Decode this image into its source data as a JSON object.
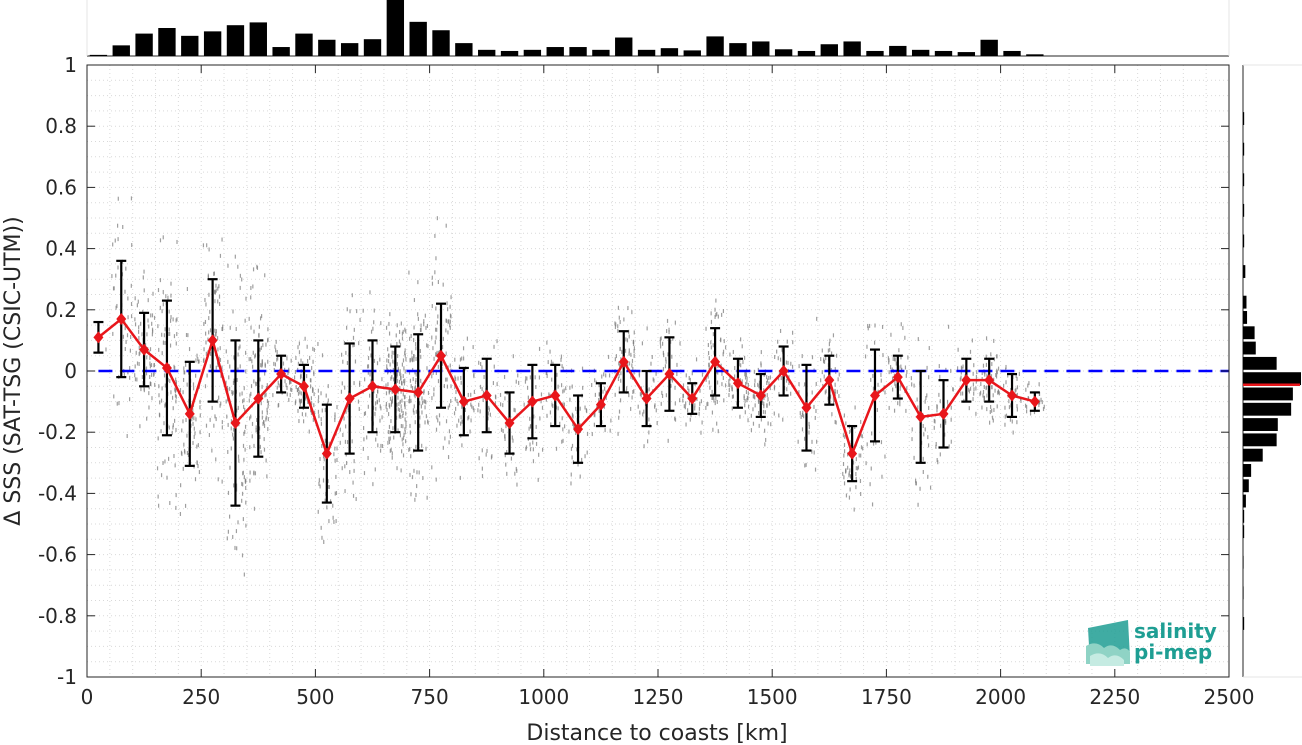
{
  "chart_data": {
    "type": "scatter",
    "xlabel": "Distance to coasts [km]",
    "ylabel": "Δ SSS (SAT-TSG (CSIC-UTM))",
    "xlim": [
      0,
      2500
    ],
    "ylim": [
      -1,
      1
    ],
    "xticks": [
      0,
      250,
      500,
      750,
      1000,
      1250,
      1500,
      1750,
      2000,
      2250,
      2500
    ],
    "xtick_labels": [
      "0",
      "250",
      "500",
      "750",
      "1000",
      "1250",
      "1500",
      "1750",
      "2000",
      "2250",
      "2500"
    ],
    "yticks": [
      -1,
      -0.8,
      -0.6,
      -0.4,
      -0.2,
      0,
      0.2,
      0.4,
      0.6,
      0.8,
      1
    ],
    "ytick_labels": [
      "-1",
      "-0.8",
      "-0.6",
      "-0.4",
      "-0.2",
      "0",
      "0.2",
      "0.4",
      "0.6",
      "0.8",
      "1"
    ],
    "grid": true,
    "reference_line": {
      "y": 0,
      "color": "#0000ff",
      "style": "dashed"
    },
    "series": [
      {
        "color": "#e8161b",
        "marker": "diamond",
        "x": [
          25,
          75,
          125,
          175,
          225,
          275,
          325,
          375,
          425,
          475,
          525,
          575,
          625,
          675,
          725,
          775,
          825,
          875,
          925,
          975,
          1025,
          1075,
          1125,
          1175,
          1225,
          1275,
          1325,
          1375,
          1425,
          1475,
          1525,
          1575,
          1625,
          1675,
          1725,
          1775,
          1825,
          1875,
          1925,
          1975,
          2025,
          2075
        ],
        "mean": [
          0.11,
          0.17,
          0.07,
          0.01,
          -0.14,
          0.1,
          -0.17,
          -0.09,
          -0.01,
          -0.05,
          -0.27,
          -0.09,
          -0.05,
          -0.06,
          -0.07,
          0.05,
          -0.1,
          -0.08,
          -0.17,
          -0.1,
          -0.08,
          -0.19,
          -0.11,
          0.03,
          -0.09,
          -0.01,
          -0.09,
          0.03,
          -0.04,
          -0.08,
          0.0,
          -0.12,
          -0.03,
          -0.27,
          -0.08,
          -0.02,
          -0.15,
          -0.14,
          -0.03,
          -0.03,
          -0.08,
          -0.1
        ],
        "std": [
          0.05,
          0.19,
          0.12,
          0.22,
          0.17,
          0.2,
          0.27,
          0.19,
          0.06,
          0.07,
          0.16,
          0.18,
          0.15,
          0.14,
          0.19,
          0.17,
          0.11,
          0.12,
          0.1,
          0.12,
          0.1,
          0.11,
          0.07,
          0.1,
          0.09,
          0.12,
          0.05,
          0.11,
          0.08,
          0.07,
          0.08,
          0.14,
          0.08,
          0.09,
          0.15,
          0.07,
          0.15,
          0.11,
          0.07,
          0.07,
          0.07,
          0.03
        ]
      }
    ],
    "scatter_points": {
      "color": "#7f7f7f",
      "x_range": [
        40,
        2100
      ],
      "description_free": true
    },
    "top_histogram": {
      "color": "#000000",
      "bin_width": 50,
      "bin_left_edges": [
        0,
        50,
        100,
        150,
        200,
        250,
        300,
        350,
        400,
        450,
        500,
        550,
        600,
        650,
        700,
        750,
        800,
        850,
        900,
        950,
        1000,
        1050,
        1100,
        1150,
        1200,
        1250,
        1300,
        1350,
        1400,
        1450,
        1500,
        1550,
        1600,
        1650,
        1700,
        1750,
        1800,
        1850,
        1900,
        1950,
        2000,
        2050
      ],
      "relative_heights": [
        0.02,
        0.19,
        0.4,
        0.5,
        0.36,
        0.44,
        0.55,
        0.6,
        0.16,
        0.4,
        0.29,
        0.23,
        0.3,
        1.0,
        0.61,
        0.46,
        0.23,
        0.11,
        0.09,
        0.11,
        0.16,
        0.16,
        0.11,
        0.33,
        0.11,
        0.14,
        0.1,
        0.35,
        0.23,
        0.26,
        0.12,
        0.09,
        0.21,
        0.26,
        0.09,
        0.18,
        0.11,
        0.09,
        0.07,
        0.29,
        0.09,
        0.03
      ]
    },
    "right_histogram": {
      "color": "#000000",
      "bin_height": 0.05,
      "bin_centers": [
        0.825,
        0.725,
        0.625,
        0.525,
        0.425,
        0.325,
        0.225,
        0.175,
        0.125,
        0.075,
        0.025,
        -0.025,
        -0.075,
        -0.125,
        -0.175,
        -0.225,
        -0.275,
        -0.325,
        -0.375,
        -0.425,
        -0.475,
        -0.525,
        -0.625,
        -0.725,
        -0.825
      ],
      "relative_widths": [
        0.02,
        0.02,
        0.02,
        0.02,
        0.02,
        0.04,
        0.06,
        0.07,
        0.2,
        0.22,
        0.58,
        1.0,
        0.86,
        0.83,
        0.6,
        0.58,
        0.34,
        0.14,
        0.1,
        0.05,
        0.02,
        0.02,
        0.01,
        0.01,
        0.02
      ],
      "mean_line": {
        "y": -0.045,
        "color": "#e8161b"
      }
    }
  },
  "logo": {
    "line1": "salinity",
    "line2": "pi-mep",
    "color": "#1e9e93"
  }
}
